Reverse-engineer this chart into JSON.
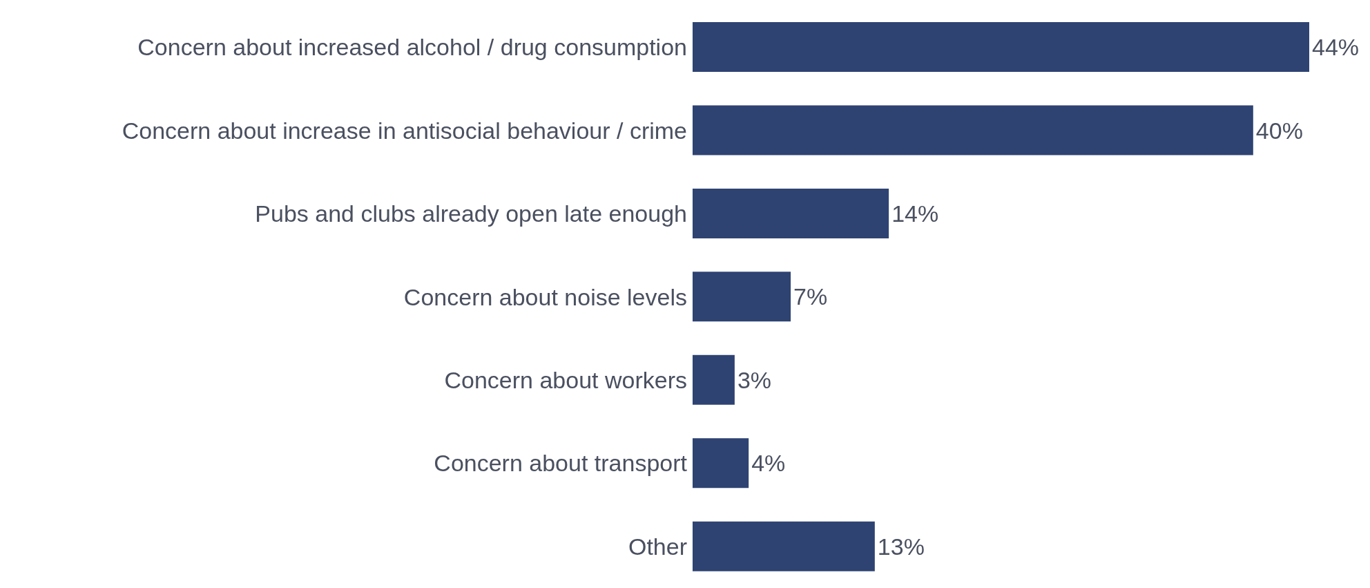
{
  "chart_data": {
    "type": "bar",
    "orientation": "horizontal",
    "categories": [
      "Concern about increased alcohol / drug consumption",
      "Concern about increase in antisocial behaviour / crime",
      "Pubs and clubs already open late enough",
      "Concern about noise levels",
      "Concern about workers",
      "Concern about transport",
      "Other"
    ],
    "values": [
      44,
      40,
      14,
      7,
      3,
      4,
      13
    ],
    "value_labels": [
      "44%",
      "40%",
      "14%",
      "7%",
      "3%",
      "4%",
      "13%"
    ],
    "color": "#2e4372",
    "grid": false,
    "legend": false
  }
}
